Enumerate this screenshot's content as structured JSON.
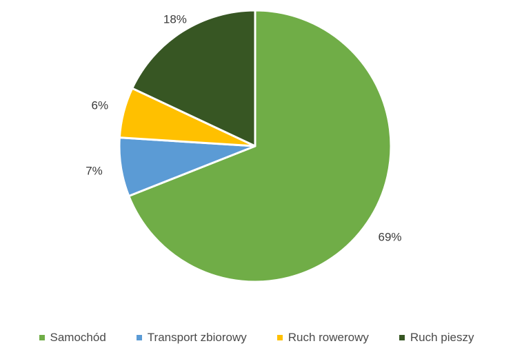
{
  "chart_data": {
    "type": "pie",
    "title": "",
    "categories": [
      "Samochód",
      "Transport zbiorowy",
      "Ruch rowerowy",
      "Ruch pieszy"
    ],
    "values": [
      69,
      7,
      6,
      18
    ],
    "labels": [
      "69%",
      "7%",
      "6%",
      "18%"
    ],
    "colors": [
      "#70ad47",
      "#5b9bd5",
      "#ffc000",
      "#375623"
    ],
    "legend_colors": [
      "#70ad47",
      "#5b9bd5",
      "#ffc000",
      "#375623"
    ],
    "start_angle_deg": 0,
    "direction": "clockwise",
    "legend_position": "bottom"
  }
}
